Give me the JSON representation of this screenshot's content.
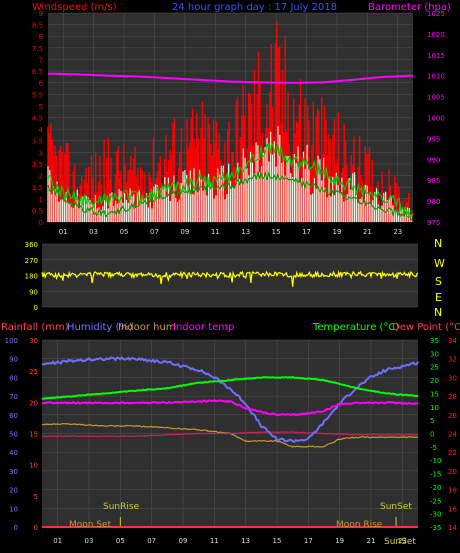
{
  "colors": {
    "background": "#000000",
    "panel": "#2f2f2f",
    "grid": "#555555",
    "wind_speed": "#ff0000",
    "wind_avg": "#00cc00",
    "gust": "#e8f5e8",
    "barometer": "#ff00ff",
    "wind_dir": "#ffff00",
    "humidity": "#6f6fff",
    "temperature": "#00ff00",
    "dew_point": "#ff2020",
    "indoor_temp": "#ff00ff",
    "indoor_hum": "#cc9933",
    "rainfall": "#ff3333",
    "sun_moon": "#cccc33",
    "left_axis_top": "#ff0000",
    "right_axis_top": "#ff00ff",
    "compass": "#ffff00",
    "hum_axis": "#7777ff",
    "rain_axis": "#ff4040"
  },
  "header": {
    "left": "Windspeed (m/s)",
    "center": "24 hour graph day : 17 July 2018",
    "right": "Barometer (hpa)"
  },
  "middle_header": {
    "left": "Rainfall (mm)",
    "humidity": "Humidity (%)",
    "indoor_hum": "Indoor hum",
    "indoor_temp": "Indoor temp",
    "temperature": "Temperature (°C)",
    "dew_point": "Dew Point (°C)"
  },
  "compass": [
    "N",
    "W",
    "S",
    "E",
    "N"
  ],
  "annotations": {
    "sunrise_top": "SunRise",
    "sunset_top": "SunSet",
    "moonset": "Moon Set",
    "moonrise": "Moon Rise",
    "sunset_bottom": "SunSet"
  },
  "chart_data": [
    {
      "type": "line",
      "name": "wind",
      "x_tick_labels": [
        "01",
        "03",
        "05",
        "07",
        "09",
        "11",
        "13",
        "15",
        "17",
        "19",
        "21",
        "23"
      ],
      "x_range": [
        0,
        24
      ],
      "left_axis": {
        "label": "Windspeed (m/s)",
        "ylim": [
          0,
          9
        ],
        "ticks": [
          0,
          0.5,
          1,
          1.5,
          2,
          2.5,
          3,
          3.5,
          4,
          4.5,
          5,
          5.5,
          6,
          6.5,
          7,
          7.5,
          8,
          8.5,
          9
        ]
      },
      "right_axis": {
        "label": "Barometer (hpa)",
        "ylim": [
          975,
          1025
        ],
        "ticks": [
          975,
          980,
          985,
          990,
          995,
          1000,
          1005,
          1010,
          1015,
          1020,
          1025
        ]
      },
      "series": [
        {
          "key": "gust_max",
          "x": [
            0,
            1,
            2,
            3,
            4,
            5,
            6,
            7,
            8,
            9,
            10,
            11,
            12,
            13,
            14,
            15,
            16,
            17,
            18,
            19,
            20,
            21,
            22,
            23,
            24
          ],
          "values": [
            4.5,
            3.8,
            2.5,
            3.2,
            3.8,
            3.5,
            3.2,
            3.8,
            4.8,
            5.0,
            5.5,
            5.2,
            5.5,
            6.5,
            8.5,
            9.0,
            8.0,
            6.5,
            5.5,
            5.0,
            4.0,
            3.5,
            2.5,
            2.0,
            1.0
          ]
        },
        {
          "key": "wind_avg",
          "x": [
            0,
            1,
            2,
            3,
            4,
            5,
            6,
            7,
            8,
            9,
            10,
            11,
            12,
            13,
            14,
            15,
            16,
            17,
            18,
            19,
            20,
            21,
            22,
            23,
            24
          ],
          "values": [
            1.8,
            1.2,
            1.0,
            0.9,
            1.0,
            1.1,
            1.0,
            1.2,
            1.5,
            1.6,
            1.8,
            1.7,
            2.0,
            2.4,
            3.0,
            3.2,
            2.6,
            2.4,
            2.2,
            1.8,
            1.6,
            1.2,
            1.0,
            0.8,
            0.4
          ]
        },
        {
          "key": "wind_min",
          "x": [
            0,
            2,
            4,
            6,
            8,
            10,
            12,
            14,
            16,
            18,
            20,
            22,
            24
          ],
          "values": [
            1.5,
            0.6,
            0.3,
            0.8,
            1.2,
            1.4,
            1.6,
            2.0,
            1.8,
            1.4,
            1.0,
            0.6,
            0.2
          ]
        },
        {
          "key": "barometer",
          "x": [
            0,
            2,
            4,
            6,
            8,
            10,
            12,
            14,
            16,
            18,
            20,
            22,
            24
          ],
          "values": [
            1010.5,
            1010.3,
            1010.0,
            1009.8,
            1009.4,
            1009.0,
            1008.6,
            1008.4,
            1008.3,
            1008.4,
            1009.0,
            1009.7,
            1010.0
          ]
        }
      ]
    },
    {
      "type": "line",
      "name": "wind_direction",
      "ylim": [
        0,
        360
      ],
      "y_ticks": [
        0,
        90,
        180,
        270,
        360
      ],
      "series": [
        {
          "key": "direction",
          "x": [
            0,
            2,
            4,
            6,
            8,
            10,
            12,
            14,
            16,
            18,
            20,
            22,
            24
          ],
          "values": [
            185,
            182,
            188,
            180,
            184,
            186,
            183,
            190,
            182,
            185,
            188,
            184,
            186
          ]
        }
      ]
    },
    {
      "type": "line",
      "name": "temperature_humidity",
      "x_tick_labels": [
        "01",
        "03",
        "05",
        "07",
        "09",
        "11",
        "13",
        "15",
        "17",
        "19",
        "21",
        "23"
      ],
      "humidity_axis": {
        "ylim": [
          0,
          100
        ],
        "ticks": [
          0,
          10,
          20,
          30,
          40,
          50,
          60,
          70,
          80,
          90,
          100
        ]
      },
      "rain_axis": {
        "ylim": [
          0,
          30
        ],
        "ticks": [
          0,
          5,
          10,
          15,
          20,
          25,
          30
        ]
      },
      "temp_axis": {
        "ylim": [
          -35,
          35
        ],
        "ticks": [
          -35,
          -30,
          -25,
          -20,
          -15,
          -10,
          -5,
          0,
          5,
          10,
          15,
          20,
          25,
          30,
          35
        ]
      },
      "dew_axis": {
        "ylim": [
          14,
          34
        ],
        "ticks": [
          14,
          16,
          18,
          20,
          22,
          24,
          26,
          28,
          30,
          32,
          34
        ]
      },
      "series": [
        {
          "key": "humidity",
          "x": [
            0,
            2,
            4,
            6,
            8,
            10,
            11,
            12,
            13,
            14,
            15,
            16,
            17,
            18,
            19,
            20,
            21,
            22,
            23,
            24
          ],
          "values": [
            87,
            89,
            90,
            90,
            88,
            84,
            80,
            74,
            66,
            54,
            47,
            46,
            47,
            56,
            66,
            74,
            80,
            84,
            86,
            88
          ]
        },
        {
          "key": "temperature",
          "x": [
            0,
            2,
            4,
            6,
            8,
            10,
            12,
            14,
            16,
            18,
            20,
            22,
            24
          ],
          "values": [
            13,
            14,
            15,
            16,
            17,
            19,
            20,
            21,
            21,
            20,
            17,
            15,
            14
          ]
        },
        {
          "key": "indoor_temp",
          "x": [
            0,
            2,
            4,
            6,
            8,
            10,
            11,
            12,
            13,
            14,
            15,
            16,
            17,
            18,
            19,
            20,
            22,
            24
          ],
          "values": [
            11.5,
            11.5,
            11.4,
            11.5,
            11.6,
            12,
            12.2,
            12,
            9.5,
            8,
            7,
            7,
            7.5,
            8.5,
            11,
            11.5,
            11.5,
            11.2
          ]
        },
        {
          "key": "indoor_hum",
          "x": [
            0,
            2,
            4,
            6,
            8,
            10,
            12,
            13,
            14,
            15,
            16,
            17,
            18,
            19,
            20,
            22,
            24
          ],
          "values": [
            55,
            55,
            54,
            54,
            53,
            52,
            50,
            46,
            46,
            46,
            43,
            43,
            43,
            47,
            48,
            48,
            48
          ]
        },
        {
          "key": "dew_point",
          "x": [
            0,
            2,
            4,
            6,
            8,
            10,
            12,
            14,
            16,
            18,
            20,
            22,
            24
          ],
          "values": [
            -1,
            -1,
            -1,
            -1,
            -0.5,
            0,
            0,
            0.5,
            0.5,
            0,
            -0.5,
            -0.5,
            -0.5
          ]
        },
        {
          "key": "rainfall",
          "x": [
            0,
            24
          ],
          "values": [
            0,
            0
          ]
        }
      ]
    }
  ]
}
